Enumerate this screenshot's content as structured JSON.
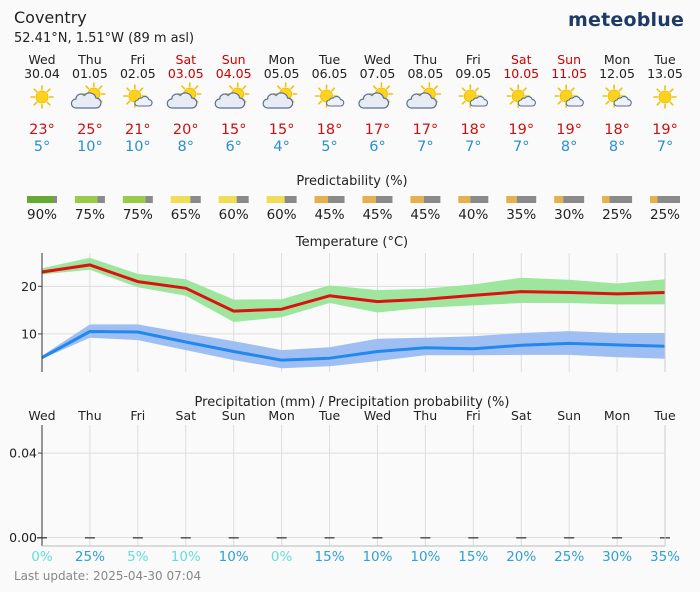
{
  "header": {
    "location": "Coventry",
    "coords": "52.41°N, 1.51°W (89 m asl)",
    "brand": "meteoblue"
  },
  "colors": {
    "weekday": "#222222",
    "weekend": "#cc0000",
    "temp_max": "#cc1111",
    "temp_min": "#2a8fd1",
    "max_band": "#9ee69e",
    "min_band": "#9fbff2",
    "max_line": "#dd1111",
    "min_line": "#2288ee"
  },
  "days": [
    {
      "dow": "Wed",
      "date": "30.04",
      "weekend": false,
      "icon": "sun-icon",
      "tmax": "23°",
      "tmin": "5°"
    },
    {
      "dow": "Thu",
      "date": "01.05",
      "weekend": false,
      "icon": "sun-cloud-icon",
      "tmax": "25°",
      "tmin": "10°"
    },
    {
      "dow": "Fri",
      "date": "02.05",
      "weekend": false,
      "icon": "sun-small-cloud-icon",
      "tmax": "21°",
      "tmin": "10°"
    },
    {
      "dow": "Sat",
      "date": "03.05",
      "weekend": true,
      "icon": "sun-cloud-icon",
      "tmax": "20°",
      "tmin": "8°"
    },
    {
      "dow": "Sun",
      "date": "04.05",
      "weekend": true,
      "icon": "sun-cloud-icon",
      "tmax": "15°",
      "tmin": "6°"
    },
    {
      "dow": "Mon",
      "date": "05.05",
      "weekend": false,
      "icon": "sun-cloud-icon",
      "tmax": "15°",
      "tmin": "4°"
    },
    {
      "dow": "Tue",
      "date": "06.05",
      "weekend": false,
      "icon": "sun-small-cloud-icon",
      "tmax": "18°",
      "tmin": "5°"
    },
    {
      "dow": "Wed",
      "date": "07.05",
      "weekend": false,
      "icon": "sun-cloud-icon",
      "tmax": "17°",
      "tmin": "6°"
    },
    {
      "dow": "Thu",
      "date": "08.05",
      "weekend": false,
      "icon": "sun-cloud-icon",
      "tmax": "17°",
      "tmin": "7°"
    },
    {
      "dow": "Fri",
      "date": "09.05",
      "weekend": false,
      "icon": "sun-small-cloud-icon",
      "tmax": "18°",
      "tmin": "7°"
    },
    {
      "dow": "Sat",
      "date": "10.05",
      "weekend": true,
      "icon": "sun-small-cloud-icon",
      "tmax": "19°",
      "tmin": "7°"
    },
    {
      "dow": "Sun",
      "date": "11.05",
      "weekend": true,
      "icon": "sun-small-cloud-icon",
      "tmax": "19°",
      "tmin": "8°"
    },
    {
      "dow": "Mon",
      "date": "12.05",
      "weekend": false,
      "icon": "sun-small-cloud-icon",
      "tmax": "18°",
      "tmin": "8°"
    },
    {
      "dow": "Tue",
      "date": "13.05",
      "weekend": false,
      "icon": "sun-icon",
      "tmax": "19°",
      "tmin": "7°"
    }
  ],
  "predictability": {
    "title": "Predictability (%)",
    "values": [
      90,
      75,
      75,
      65,
      60,
      60,
      45,
      45,
      45,
      40,
      35,
      30,
      25,
      25
    ],
    "labels": [
      "90%",
      "75%",
      "75%",
      "65%",
      "60%",
      "60%",
      "45%",
      "45%",
      "45%",
      "40%",
      "35%",
      "30%",
      "25%",
      "25%"
    ],
    "colors": [
      "#66aa33",
      "#99cc44",
      "#99cc44",
      "#eedd55",
      "#eedd55",
      "#eedd55",
      "#e6b04a",
      "#e6b04a",
      "#e6b04a",
      "#e6b04a",
      "#e6b04a",
      "#e6b04a",
      "#e6b04a",
      "#e6b04a"
    ]
  },
  "chart_data": [
    {
      "type": "line",
      "title": "Temperature (°C)",
      "x": [
        "30.04",
        "01.05",
        "02.05",
        "03.05",
        "04.05",
        "05.05",
        "06.05",
        "07.05",
        "08.05",
        "09.05",
        "10.05",
        "11.05",
        "12.05",
        "13.05"
      ],
      "ylim": [
        2,
        27
      ],
      "yticks": [
        10,
        20
      ],
      "ytick_labels": [
        "10",
        "20"
      ],
      "series": [
        {
          "values": [
            23,
            24.5,
            21,
            19.6,
            14.8,
            15.2,
            18,
            16.8,
            17.3,
            18.1,
            18.9,
            18.7,
            18.4,
            18.7
          ],
          "band_low": [
            22.5,
            23.5,
            19.8,
            18,
            12.5,
            13.5,
            16.5,
            14.5,
            15.5,
            16,
            16.5,
            16.5,
            16.2,
            16.2
          ],
          "band_high": [
            23.8,
            26,
            22.6,
            21.5,
            17.2,
            17.3,
            20.2,
            19.2,
            19.5,
            20.4,
            21.8,
            21.4,
            20.6,
            21.5
          ]
        },
        {
          "values": [
            5,
            10.5,
            10.4,
            8.3,
            6.3,
            4.5,
            4.9,
            6.3,
            7.1,
            6.9,
            7.6,
            8,
            7.7,
            7.4
          ],
          "band_low": [
            4.8,
            9.2,
            8.7,
            6.6,
            4.5,
            2.8,
            3.2,
            4.3,
            5.5,
            5.5,
            5.6,
            5.6,
            5.1,
            4.8
          ],
          "band_high": [
            5.4,
            12,
            12,
            10.2,
            8.5,
            6.6,
            7.2,
            9,
            9.2,
            9.5,
            10.2,
            10.6,
            10.2,
            10.2
          ]
        }
      ]
    },
    {
      "type": "bar",
      "title": "Precipitation (mm) / Precipitation probability (%)",
      "categories": [
        "Wed",
        "Thu",
        "Fri",
        "Sat",
        "Sun",
        "Mon",
        "Tue",
        "Wed",
        "Thu",
        "Fri",
        "Sat",
        "Sun",
        "Mon",
        "Tue"
      ],
      "values": [
        0,
        0,
        0,
        0,
        0,
        0,
        0,
        0,
        0,
        0,
        0,
        0,
        0,
        0
      ],
      "ylim": [
        -0.004,
        0.0533
      ],
      "yticks": [
        0.0,
        0.04
      ],
      "ytick_labels": [
        "0.00",
        "0.04"
      ],
      "probability": [
        0,
        25,
        5,
        10,
        10,
        0,
        15,
        10,
        10,
        15,
        20,
        25,
        30,
        35
      ],
      "probability_labels": [
        "0%",
        "25%",
        "5%",
        "10%",
        "10%",
        "0%",
        "15%",
        "10%",
        "10%",
        "15%",
        "20%",
        "25%",
        "30%",
        "35%"
      ],
      "probability_colors": [
        "#66dddd",
        "#2f9fd6",
        "#66dddd",
        "#66dddd",
        "#2f9fd6",
        "#66dddd",
        "#2f9fd6",
        "#2f9fd6",
        "#2f9fd6",
        "#2f9fd6",
        "#2f9fd6",
        "#2f9fd6",
        "#2f9fd6",
        "#2f9fd6"
      ]
    }
  ],
  "footer": "Last update: 2025-04-30 07:04"
}
